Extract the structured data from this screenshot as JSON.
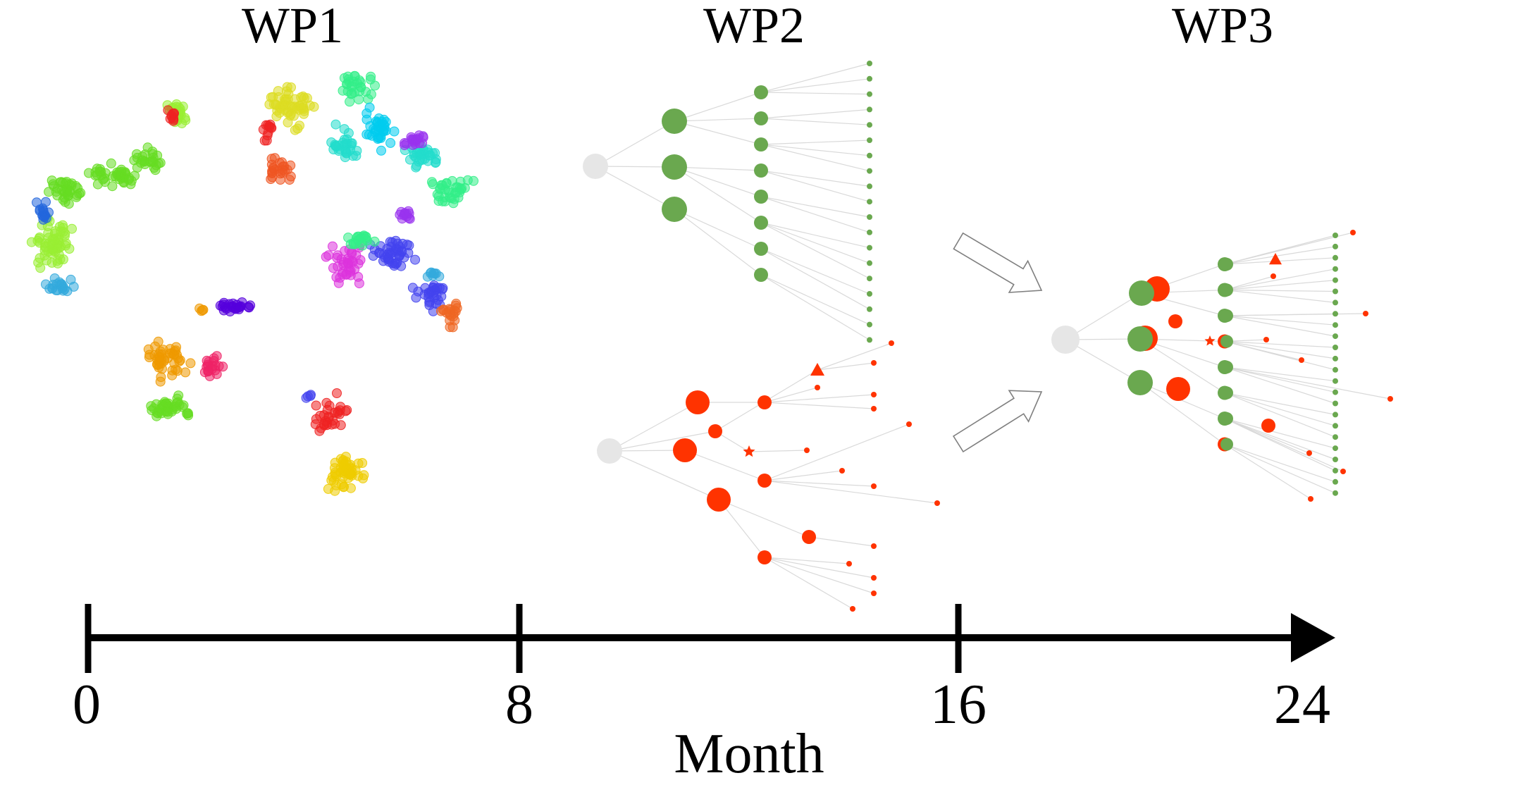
{
  "titles": {
    "wp1": "WP1",
    "wp2": "WP2",
    "wp3": "WP3"
  },
  "timeline": {
    "axis_title": "Month",
    "ticks": [
      "0",
      "8",
      "16",
      "24"
    ]
  },
  "colors": {
    "green_node": "#6aa84f",
    "red_node": "#ff3300",
    "root_node": "#e6e6e6",
    "edge": "#d9d9d9",
    "axis": "#000000",
    "arrow_outline": "#7f7f7f"
  },
  "cluster_palette": [
    "#66dd22",
    "#99ee33",
    "#2266dd",
    "#33aadd",
    "#dddd22",
    "#ee5522",
    "#22ddcc",
    "#33ee88",
    "#00ccee",
    "#9933ee",
    "#dd33dd",
    "#4444ee",
    "#ee9900",
    "#ee2266",
    "#ee2222",
    "#eecc00",
    "#5500dd",
    "#ee6622"
  ]
}
